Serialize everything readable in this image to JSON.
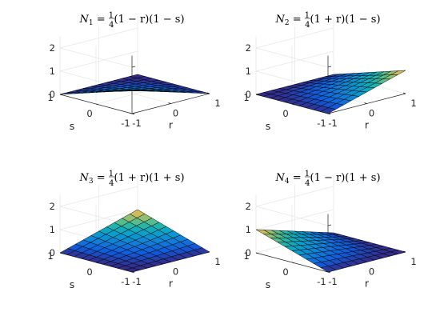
{
  "chart_data": [
    {
      "type": "surface",
      "function": "N1",
      "title": {
        "name": "N",
        "index": "1",
        "lhs_eq": " = ",
        "num": "1",
        "den": "4",
        "factors": "(1 − r)(1 − s)"
      },
      "xlabel": "r",
      "ylabel": "s",
      "xlim": [
        -1,
        1
      ],
      "ylim": [
        -1,
        1
      ],
      "zlim": [
        0,
        2.5
      ],
      "xticks": [
        "-1",
        "0",
        "1"
      ],
      "yticks": [
        "-1",
        "0",
        "1"
      ],
      "zticks": [
        "0",
        "1",
        "2"
      ],
      "grid": true,
      "corner_values": {
        "r-1_s-1": 1,
        "r1_s-1": 0,
        "r-1_s1": 0,
        "r1_s1": 0
      }
    },
    {
      "type": "surface",
      "function": "N2",
      "title": {
        "name": "N",
        "index": "2",
        "lhs_eq": " = ",
        "num": "1",
        "den": "4",
        "factors": "(1 + r)(1 − s)"
      },
      "xlabel": "r",
      "ylabel": "s",
      "xlim": [
        -1,
        1
      ],
      "ylim": [
        -1,
        1
      ],
      "zlim": [
        0,
        2.5
      ],
      "xticks": [
        "-1",
        "0",
        "1"
      ],
      "yticks": [
        "-1",
        "0",
        "1"
      ],
      "zticks": [
        "0",
        "1",
        "2"
      ],
      "grid": true,
      "corner_values": {
        "r-1_s-1": 0,
        "r1_s-1": 1,
        "r-1_s1": 0,
        "r1_s1": 0
      }
    },
    {
      "type": "surface",
      "function": "N3",
      "title": {
        "name": "N",
        "index": "3",
        "lhs_eq": " = ",
        "num": "1",
        "den": "4",
        "factors": "(1 + r)(1 + s)"
      },
      "xlabel": "r",
      "ylabel": "s",
      "xlim": [
        -1,
        1
      ],
      "ylim": [
        -1,
        1
      ],
      "zlim": [
        0,
        2.5
      ],
      "xticks": [
        "-1",
        "0",
        "1"
      ],
      "yticks": [
        "-1",
        "0",
        "1"
      ],
      "zticks": [
        "0",
        "1",
        "2"
      ],
      "grid": true,
      "corner_values": {
        "r-1_s-1": 0,
        "r1_s-1": 0,
        "r-1_s1": 0,
        "r1_s1": 1
      }
    },
    {
      "type": "surface",
      "function": "N4",
      "title": {
        "name": "N",
        "index": "4",
        "lhs_eq": " = ",
        "num": "1",
        "den": "4",
        "factors": "(1 − r)(1 + s)"
      },
      "xlabel": "r",
      "ylabel": "s",
      "xlim": [
        -1,
        1
      ],
      "ylim": [
        -1,
        1
      ],
      "zlim": [
        0,
        2.5
      ],
      "xticks": [
        "-1",
        "0",
        "1"
      ],
      "yticks": [
        "-1",
        "0",
        "1"
      ],
      "zticks": [
        "0",
        "1",
        "2"
      ],
      "grid": true,
      "corner_values": {
        "r-1_s-1": 0,
        "r1_s-1": 0,
        "r-1_s1": 1,
        "r1_s1": 0
      }
    }
  ]
}
